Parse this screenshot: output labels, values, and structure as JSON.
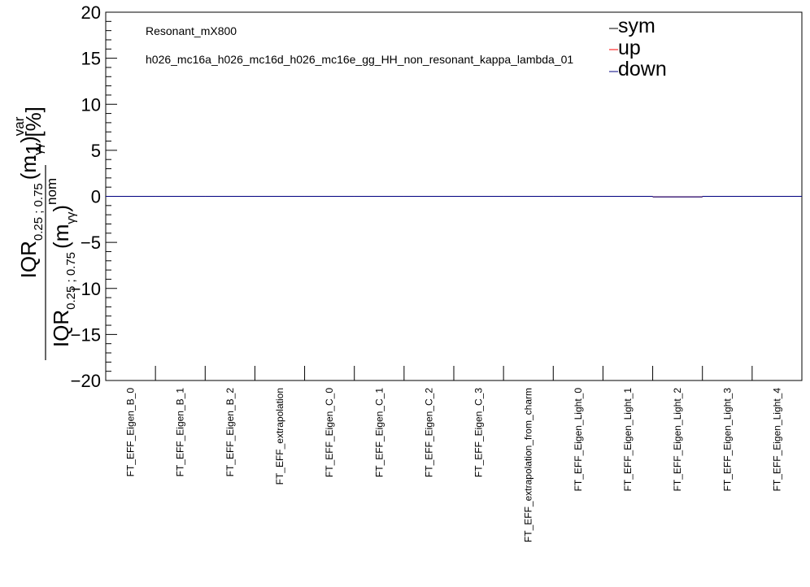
{
  "chart_data": {
    "type": "bar",
    "categories": [
      "FT_EFF_Eigen_B_0",
      "FT_EFF_Eigen_B_1",
      "FT_EFF_Eigen_B_2",
      "FT_EFF_extrapolation",
      "FT_EFF_Eigen_C_0",
      "FT_EFF_Eigen_C_1",
      "FT_EFF_Eigen_C_2",
      "FT_EFF_Eigen_C_3",
      "FT_EFF_extrapolation_from_charm",
      "FT_EFF_Eigen_Light_0",
      "FT_EFF_Eigen_Light_1",
      "FT_EFF_Eigen_Light_2",
      "FT_EFF_Eigen_Light_3",
      "FT_EFF_Eigen_Light_4"
    ],
    "series": [
      {
        "name": "sym",
        "color": "#000000",
        "values": [
          0,
          0,
          0,
          0,
          0,
          0,
          0,
          0,
          0,
          0,
          0,
          -0.05,
          0,
          0
        ]
      },
      {
        "name": "up",
        "color": "#ff0000",
        "values": [
          0,
          0,
          0,
          0,
          0,
          0,
          0,
          0,
          0,
          0,
          0,
          -0.05,
          0,
          0
        ]
      },
      {
        "name": "down",
        "color": "#000080",
        "values": [
          0,
          0,
          0,
          0,
          0,
          0,
          0,
          0,
          0,
          0,
          0,
          -0.05,
          0,
          0
        ]
      }
    ],
    "ylim": [
      -20,
      20
    ],
    "yticks": [
      "20",
      "15",
      "10",
      "5",
      "0",
      "−5",
      "−10",
      "−15",
      "−20"
    ],
    "yticks_values": [
      20,
      15,
      10,
      5,
      0,
      -5,
      -10,
      -15,
      -20
    ],
    "ylabel": {
      "num_main": "IQR",
      "num_sub": "0.25 ; 0.75",
      "num_paren": "(m",
      "num_paren_sub": "γγ",
      "num_close": ")",
      "num_sup": "var",
      "den_main": "IQR",
      "den_sub": "0.25 ; 0.75",
      "den_paren": "(m",
      "den_paren_sub": "γγ",
      "den_close": ")",
      "den_sup": "nom",
      "suffix": "-1 [%]"
    },
    "annotations": [
      "Resonant_mX800",
      "h026_mc16a_h026_mc16d_h026_mc16e_gg_HH_non_resonant_kappa_lambda_01"
    ],
    "legend_position": "top-right",
    "grid": false
  }
}
